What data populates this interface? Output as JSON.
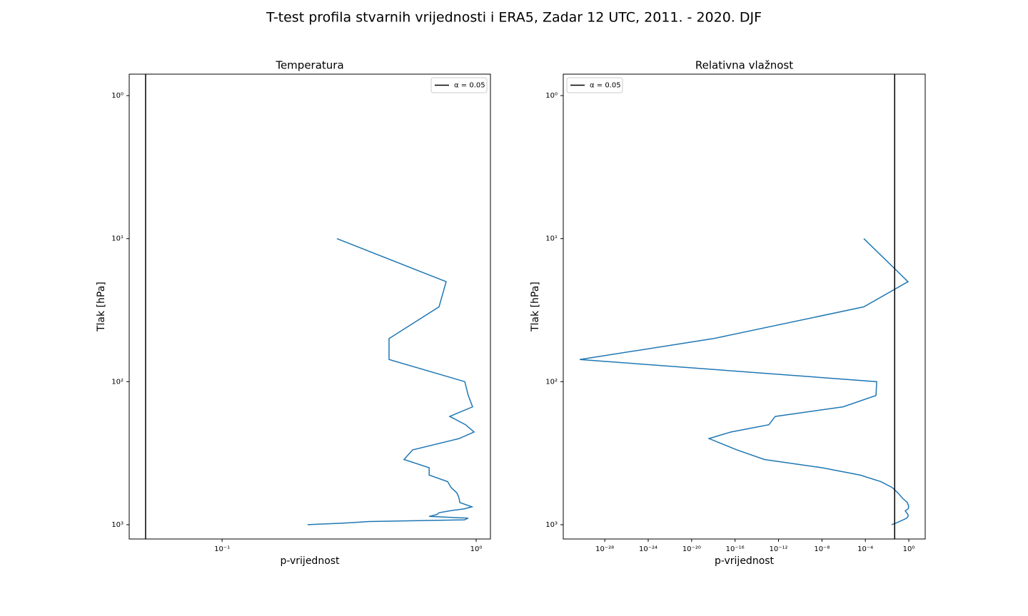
{
  "title": "T-test profila stvarnih vrijednosti i ERA5, Zadar 12 UTC, 2011. - 2020. DJF",
  "chart_data": [
    {
      "type": "line",
      "title": "Temperatura",
      "x_label": "p-vrijednost",
      "y_label": "Tlak [hPa]",
      "xscale": "log",
      "yscale": "log",
      "xlim": [
        0.0431,
        1.138
      ],
      "ylim": [
        1259,
        0.708
      ],
      "xticks": [
        {
          "value": 0.1,
          "label": "10⁻¹"
        },
        {
          "value": 1,
          "label": "10⁰"
        }
      ],
      "yticks": [
        {
          "value": 1,
          "label": "10⁰"
        },
        {
          "value": 10,
          "label": "10¹"
        },
        {
          "value": 100,
          "label": "10²"
        },
        {
          "value": 1000,
          "label": "10³"
        }
      ],
      "legend": "upper right",
      "vlines": [
        {
          "x": 0.05,
          "label": "α = 0.05",
          "color": "#000000"
        }
      ],
      "series": [
        {
          "color": "#1f77b4",
          "y": [
            10,
            20,
            30,
            50,
            70,
            100,
            125,
            150,
            175,
            200,
            225,
            250,
            300,
            350,
            400,
            450,
            500,
            550,
            600,
            650,
            700,
            750,
            775,
            800,
            825,
            850,
            875,
            900,
            925,
            950,
            975,
            1000
          ],
          "x": [
            0.283,
            0.762,
            0.714,
            0.454,
            0.454,
            0.902,
            0.931,
            0.968,
            0.787,
            0.908,
            0.981,
            0.856,
            0.562,
            0.52,
            0.653,
            0.653,
            0.772,
            0.797,
            0.84,
            0.856,
            0.862,
            0.962,
            0.896,
            0.787,
            0.714,
            0.7,
            0.653,
            0.93,
            0.9,
            0.379,
            0.3,
            0.217
          ]
        }
      ]
    },
    {
      "type": "line",
      "title": "Relativna vlažnost",
      "x_label": "p-vrijednost",
      "y_label": "Tlak [hPa]",
      "xscale": "log",
      "yscale": "log",
      "xlim": [
        1.5e-32,
        32.4
      ],
      "ylim": [
        1259,
        0.708
      ],
      "xticks": [
        {
          "value": 1e-28,
          "label": "10⁻²⁸"
        },
        {
          "value": 1e-24,
          "label": "10⁻²⁴"
        },
        {
          "value": 1e-20,
          "label": "10⁻²⁰"
        },
        {
          "value": 1e-16,
          "label": "10⁻¹⁶"
        },
        {
          "value": 1e-12,
          "label": "10⁻¹²"
        },
        {
          "value": 1e-08,
          "label": "10⁻⁸"
        },
        {
          "value": 0.0001,
          "label": "10⁻⁴"
        },
        {
          "value": 1,
          "label": "10⁰"
        }
      ],
      "yticks": [
        {
          "value": 1,
          "label": "10⁰"
        },
        {
          "value": 10,
          "label": "10¹"
        },
        {
          "value": 100,
          "label": "10²"
        },
        {
          "value": 1000,
          "label": "10³"
        }
      ],
      "legend": "upper left",
      "vlines": [
        {
          "x": 0.05,
          "label": "α = 0.05",
          "color": "#000000"
        }
      ],
      "series": [
        {
          "color": "#1f77b4",
          "y": [
            10,
            20,
            30,
            50,
            70,
            100,
            125,
            150,
            175,
            200,
            225,
            250,
            300,
            350,
            400,
            450,
            500,
            550,
            600,
            650,
            700,
            750,
            775,
            800,
            825,
            850,
            875,
            900,
            925,
            950,
            975,
            1000
          ],
          "x": [
            7.2e-05,
            0.85,
            7.2e-05,
            1e-18,
            5e-31,
            0.0011,
            0.00095,
            9e-07,
            5e-13,
            1.3e-13,
            4e-17,
            4e-19,
            1.5e-16,
            5e-14,
            1.1e-08,
            3.4e-05,
            0.0027,
            0.03,
            0.1,
            0.25,
            0.74,
            1.0,
            0.85,
            0.47,
            0.63,
            0.85,
            0.85,
            0.63,
            0.3,
            0.14,
            0.066,
            0.026
          ]
        }
      ]
    }
  ]
}
